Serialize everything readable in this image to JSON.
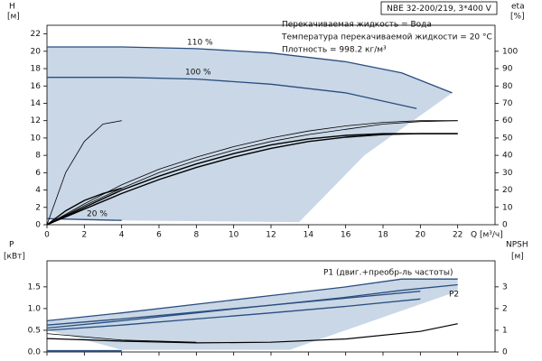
{
  "chart_data": [
    {
      "type": "line",
      "title": "NBE 32-200/219, 3*400 V",
      "notes": [
        "Перекачиваемая жидкость = Вода",
        "Температура перекачиваемой жидкости = 20 °C",
        "Плотность = 998.2 кг/м³"
      ],
      "ylabel": "H",
      "yunit": "[м]",
      "y2label": "eta",
      "y2unit": "[%]",
      "xlabel": "Q [м³/ч]",
      "xlim": [
        0,
        24
      ],
      "xticks": [
        0,
        2,
        4,
        6,
        8,
        10,
        12,
        14,
        16,
        18,
        20,
        22
      ],
      "ylim": [
        0,
        23
      ],
      "yticks": [
        0,
        2,
        4,
        6,
        8,
        10,
        12,
        14,
        16,
        18,
        20,
        22
      ],
      "y2lim": [
        0,
        115
      ],
      "y2ticks": [
        0,
        10,
        20,
        30,
        40,
        50,
        60,
        70,
        80,
        90,
        100
      ],
      "area": {
        "color": "#c9d7e6",
        "x": [
          0,
          4,
          8,
          12,
          16,
          19,
          21.7,
          17,
          13.5,
          4,
          0
        ],
        "values": [
          20.5,
          20.5,
          20.3,
          19.8,
          18.8,
          17.5,
          15.2,
          8,
          0.3,
          0.5,
          0.7
        ]
      },
      "series": [
        {
          "label": "110 %",
          "color": "#2a4d7f",
          "width": 1.3,
          "x": [
            0,
            4,
            8,
            12,
            16,
            19,
            21.7
          ],
          "values": [
            20.5,
            20.5,
            20.3,
            19.8,
            18.8,
            17.5,
            15.2
          ]
        },
        {
          "label": "100 %",
          "color": "#2a4d7f",
          "width": 1.3,
          "x": [
            0,
            4,
            8,
            12,
            16,
            19.8
          ],
          "values": [
            17,
            17,
            16.8,
            16.2,
            15.2,
            13.4
          ]
        },
        {
          "label": "20 %",
          "color": "#2a4d7f",
          "width": 1.3,
          "x": [
            0,
            4
          ],
          "values": [
            0.7,
            0.5
          ]
        },
        {
          "axis": "y2",
          "color": "#000000",
          "width": 0.8,
          "x": [
            0,
            2,
            4,
            6,
            8,
            10,
            12,
            14,
            16,
            18,
            20,
            22
          ],
          "values": [
            0,
            12,
            23,
            32,
            39,
            45,
            50,
            54,
            57,
            59,
            60,
            60
          ]
        },
        {
          "axis": "y2",
          "color": "#000000",
          "width": 0.8,
          "x": [
            0,
            2,
            4,
            6,
            8,
            10,
            12,
            14,
            16,
            18,
            20,
            22
          ],
          "values": [
            0,
            11,
            21,
            30,
            37,
            43,
            48,
            52,
            55,
            58,
            59.5,
            60
          ]
        },
        {
          "axis": "y2",
          "color": "#000000",
          "width": 1.4,
          "x": [
            0,
            2,
            4,
            6,
            8,
            10,
            12,
            14,
            16,
            18,
            20,
            22
          ],
          "values": [
            0,
            10,
            20,
            28,
            35,
            41,
            46,
            49.5,
            51.5,
            52.5,
            52.5,
            52.5
          ]
        },
        {
          "axis": "y2",
          "color": "#000000",
          "width": 1.4,
          "x": [
            0,
            2,
            4,
            6,
            8,
            10,
            12,
            14,
            16,
            18,
            20,
            22
          ],
          "values": [
            0,
            9,
            18,
            26,
            33,
            39,
            44,
            48,
            50.5,
            52,
            52.5,
            52.5
          ]
        },
        {
          "axis": "y2",
          "color": "#000000",
          "width": 0.8,
          "x": [
            0,
            1,
            2,
            3,
            4
          ],
          "values": [
            0,
            30,
            48,
            58,
            60
          ]
        },
        {
          "axis": "y2",
          "color": "#000000",
          "width": 1.4,
          "x": [
            0,
            1,
            2,
            3,
            4
          ],
          "values": [
            0,
            8,
            14,
            18,
            21
          ]
        }
      ]
    },
    {
      "type": "line",
      "ylabel": "P",
      "yunit": "[кВт]",
      "y2label": "NPSH",
      "y2unit": "[м]",
      "xlim": [
        0,
        24
      ],
      "xticks": [
        0,
        2,
        4,
        6,
        8,
        10,
        12,
        14,
        16,
        18,
        20,
        22
      ],
      "ylim": [
        0,
        2.1
      ],
      "yticks": [
        {
          "value": 0,
          "label": "0.0"
        },
        0.5,
        {
          "value": 1,
          "label": "1.0"
        },
        1.5
      ],
      "y2lim": [
        0,
        4.2
      ],
      "y2ticks": [
        0,
        1,
        2,
        3
      ],
      "area": {
        "color": "#c9d7e6",
        "x": [
          0,
          4,
          8,
          12,
          16,
          19,
          22,
          22,
          13,
          4,
          1,
          0
        ],
        "values": [
          0.72,
          0.9,
          1.1,
          1.3,
          1.5,
          1.68,
          1.68,
          1.4,
          0.05,
          0.05,
          0.4,
          0.5
        ]
      },
      "series": [
        {
          "label": "P1 (двиг.+преобр-ль частоты)",
          "color": "#2a4d7f",
          "width": 1.3,
          "x": [
            0,
            4,
            8,
            12,
            16,
            19,
            22
          ],
          "values": [
            0.72,
            0.9,
            1.1,
            1.3,
            1.5,
            1.68,
            1.68
          ]
        },
        {
          "color": "#2a4d7f",
          "width": 1.3,
          "x": [
            0,
            4,
            8,
            12,
            16,
            20
          ],
          "values": [
            0.62,
            0.76,
            0.92,
            1.08,
            1.24,
            1.4
          ]
        },
        {
          "label": "P2",
          "color": "#2a4d7f",
          "width": 1.3,
          "x": [
            0,
            4,
            8,
            12,
            16,
            19,
            22
          ],
          "values": [
            0.55,
            0.72,
            0.9,
            1.08,
            1.26,
            1.42,
            1.55
          ]
        },
        {
          "color": "#2a4d7f",
          "width": 1.3,
          "x": [
            0,
            4,
            8,
            12,
            16,
            20
          ],
          "values": [
            0.5,
            0.62,
            0.76,
            0.9,
            1.05,
            1.22
          ]
        },
        {
          "color": "#2a4d7f",
          "width": 2.2,
          "x": [
            0,
            4
          ],
          "values": [
            0.02,
            0.02
          ]
        },
        {
          "axis": "y2",
          "color": "#000000",
          "width": 1.2,
          "x": [
            0,
            4,
            8,
            12,
            16,
            20,
            22
          ],
          "values": [
            0.62,
            0.5,
            0.42,
            0.45,
            0.6,
            0.95,
            1.3
          ]
        },
        {
          "axis": "y2",
          "color": "#000000",
          "width": 0.8,
          "x": [
            0,
            4,
            8
          ],
          "values": [
            0.85,
            0.55,
            0.45
          ]
        }
      ]
    }
  ]
}
